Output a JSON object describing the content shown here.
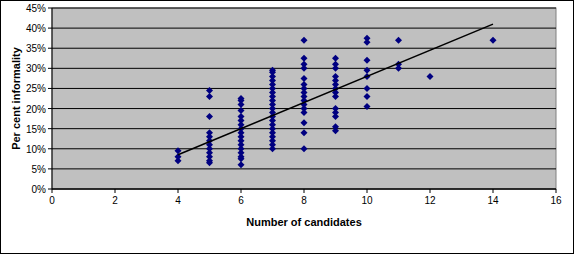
{
  "chart_data": {
    "type": "scatter",
    "x_label": "Number of candidates",
    "y_label": "Per cent informality",
    "xlim": [
      0,
      16
    ],
    "xticks": [
      0,
      2,
      4,
      6,
      8,
      10,
      12,
      14,
      16
    ],
    "ylim": [
      0,
      45
    ],
    "yticks": [
      {
        "value": 0,
        "label": "0%"
      },
      {
        "value": 5,
        "label": "5%"
      },
      {
        "value": 10,
        "label": "10%"
      },
      {
        "value": 15,
        "label": "15%"
      },
      {
        "value": 20,
        "label": "20%"
      },
      {
        "value": 25,
        "label": "25%"
      },
      {
        "value": 30,
        "label": "30%"
      },
      {
        "value": 35,
        "label": "35%"
      },
      {
        "value": 40,
        "label": "40%"
      },
      {
        "value": 45,
        "label": "45%"
      }
    ],
    "grid": true,
    "series": [
      {
        "type": "scatter",
        "color": "#000080",
        "marker": "diamond",
        "x": [
          4,
          4,
          4,
          5,
          5,
          5,
          5,
          5,
          5,
          5,
          5,
          5,
          5,
          5,
          5,
          6,
          6,
          6,
          6,
          6,
          6,
          6,
          6,
          6,
          6,
          6,
          6,
          6,
          6,
          6,
          6,
          6,
          7,
          7,
          7,
          7,
          7,
          7,
          7,
          7,
          7,
          7,
          7,
          7,
          7,
          7,
          7,
          7,
          7,
          7,
          7,
          7,
          7,
          8,
          8,
          8,
          8,
          8,
          8,
          8,
          8,
          8,
          8,
          8,
          8,
          8,
          8,
          8,
          8,
          9,
          9,
          9,
          9,
          9,
          9,
          9,
          9,
          9,
          9,
          9,
          9,
          9,
          9,
          10,
          10,
          10,
          10,
          10,
          10,
          10,
          10,
          11,
          11,
          11,
          12,
          14
        ],
        "values": [
          7,
          8,
          9.5,
          6.5,
          7,
          8,
          9,
          10,
          11,
          12,
          13,
          14,
          18,
          23,
          24.5,
          6,
          7.5,
          8,
          9,
          10,
          11,
          12,
          13,
          14,
          15,
          16,
          17,
          18,
          19.5,
          21,
          22,
          22.5,
          10,
          11,
          12,
          13,
          14,
          15,
          16,
          17,
          18,
          19,
          20,
          21,
          22,
          23,
          24,
          25,
          26,
          27,
          28,
          29,
          29.5,
          10,
          14,
          16.5,
          19,
          20,
          21,
          22,
          23,
          24,
          25,
          26,
          27.5,
          30,
          31,
          32.5,
          37,
          14.5,
          15.5,
          18,
          19,
          20,
          23,
          24,
          25,
          26,
          27,
          28,
          30,
          31,
          32.5,
          20.5,
          23,
          25,
          28,
          29.5,
          32,
          36.5,
          37.5,
          30,
          31,
          37,
          28,
          37
        ]
      },
      {
        "type": "line",
        "color": "#000000",
        "line_style": "solid",
        "x": [
          4,
          14
        ],
        "values": [
          8.5,
          41
        ]
      }
    ]
  }
}
